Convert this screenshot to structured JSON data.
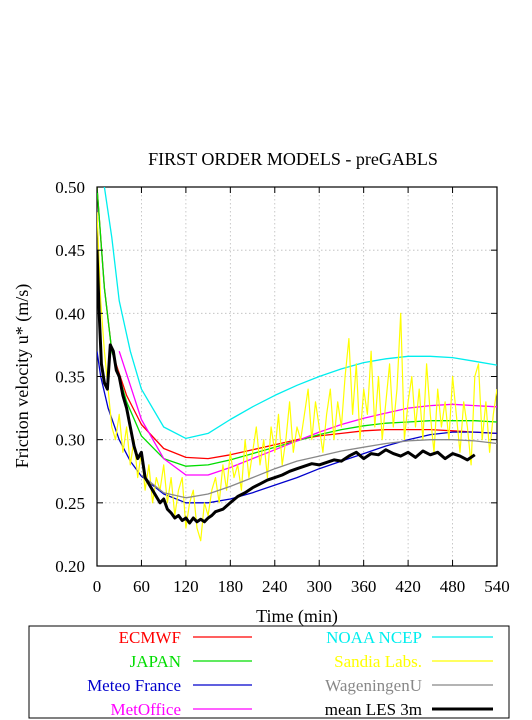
{
  "chart_data": {
    "type": "line",
    "title": "FIRST ORDER MODELS  - preGABLS",
    "xlabel": "Time (min)",
    "ylabel": "Friction velocity u* (m/s)",
    "xlim": [
      0,
      540
    ],
    "ylim": [
      0.2,
      0.5
    ],
    "xticks": [
      0,
      60,
      120,
      180,
      240,
      300,
      360,
      420,
      480,
      540
    ],
    "xtick_labels": [
      "0",
      "60",
      "120",
      "180",
      "240",
      "300",
      "360",
      "420",
      "480",
      "540"
    ],
    "yticks": [
      0.2,
      0.25,
      0.3,
      0.35,
      0.4,
      0.45,
      0.5
    ],
    "ytick_labels": [
      "0.20",
      "0.25",
      "0.30",
      "0.35",
      "0.40",
      "0.45",
      "0.50"
    ],
    "grid": true,
    "legend_position": "bottom",
    "series": [
      {
        "name": "ECMWF",
        "color": "#ff0000",
        "width": 1.3,
        "x": [
          0,
          10,
          20,
          40,
          60,
          90,
          120,
          150,
          180,
          210,
          240,
          270,
          300,
          330,
          360,
          390,
          420,
          450,
          480,
          510,
          540
        ],
        "y": [
          0.5,
          0.42,
          0.37,
          0.335,
          0.312,
          0.293,
          0.286,
          0.285,
          0.288,
          0.292,
          0.296,
          0.3,
          0.303,
          0.305,
          0.307,
          0.308,
          0.308,
          0.308,
          0.307,
          0.306,
          0.305
        ]
      },
      {
        "name": "JAPAN",
        "color": "#00dd00",
        "width": 1.3,
        "x": [
          0,
          10,
          20,
          40,
          60,
          90,
          120,
          150,
          180,
          210,
          240,
          270,
          300,
          330,
          360,
          390,
          420,
          450,
          480,
          510,
          540
        ],
        "y": [
          0.5,
          0.42,
          0.37,
          0.33,
          0.303,
          0.285,
          0.279,
          0.28,
          0.284,
          0.289,
          0.294,
          0.299,
          0.304,
          0.308,
          0.311,
          0.313,
          0.314,
          0.315,
          0.315,
          0.315,
          0.314
        ]
      },
      {
        "name": "Meteo France",
        "color": "#0000cc",
        "width": 1.3,
        "x": [
          0,
          5,
          15,
          30,
          45,
          60,
          90,
          120,
          150,
          180,
          210,
          240,
          270,
          300,
          330,
          360,
          390,
          420,
          450,
          480,
          510,
          540
        ],
        "y": [
          0.37,
          0.35,
          0.325,
          0.3,
          0.283,
          0.271,
          0.257,
          0.25,
          0.25,
          0.253,
          0.258,
          0.264,
          0.27,
          0.277,
          0.283,
          0.289,
          0.295,
          0.3,
          0.304,
          0.306,
          0.306,
          0.305
        ]
      },
      {
        "name": "MetOffice",
        "color": "#ff00ff",
        "width": 1.3,
        "x": [
          30,
          45,
          60,
          90,
          120,
          150,
          180,
          210,
          240,
          270,
          300,
          330,
          360,
          390,
          420,
          450,
          480,
          510,
          540
        ],
        "y": [
          0.37,
          0.343,
          0.316,
          0.285,
          0.272,
          0.272,
          0.278,
          0.285,
          0.292,
          0.299,
          0.306,
          0.312,
          0.317,
          0.321,
          0.325,
          0.327,
          0.328,
          0.327,
          0.326
        ]
      },
      {
        "name": "NOAA NCEP",
        "color": "#00eeee",
        "width": 1.3,
        "x": [
          0,
          5,
          10,
          20,
          30,
          45,
          60,
          90,
          120,
          150,
          180,
          210,
          240,
          270,
          300,
          330,
          360,
          390,
          420,
          450,
          480,
          510,
          540
        ],
        "y": [
          0.56,
          0.52,
          0.5,
          0.46,
          0.41,
          0.37,
          0.34,
          0.31,
          0.301,
          0.305,
          0.316,
          0.326,
          0.335,
          0.343,
          0.35,
          0.356,
          0.361,
          0.364,
          0.366,
          0.366,
          0.365,
          0.362,
          0.359
        ]
      },
      {
        "name": "Sandia Labs.",
        "color": "#ffff00",
        "width": 1.2,
        "x": [
          0,
          5,
          10,
          15,
          20,
          25,
          30,
          35,
          40,
          45,
          50,
          55,
          60,
          65,
          70,
          75,
          80,
          85,
          90,
          95,
          100,
          105,
          110,
          115,
          120,
          125,
          130,
          135,
          140,
          145,
          150,
          155,
          160,
          165,
          170,
          175,
          180,
          185,
          190,
          195,
          200,
          205,
          210,
          215,
          220,
          225,
          230,
          235,
          240,
          245,
          250,
          255,
          260,
          265,
          270,
          275,
          280,
          285,
          290,
          295,
          300,
          305,
          310,
          315,
          320,
          325,
          330,
          335,
          340,
          345,
          350,
          355,
          360,
          365,
          370,
          375,
          380,
          385,
          390,
          395,
          400,
          405,
          410,
          415,
          420,
          425,
          430,
          435,
          440,
          445,
          450,
          455,
          460,
          465,
          470,
          475,
          480,
          485,
          490,
          495,
          500,
          505,
          510,
          515,
          520,
          525,
          530,
          535,
          540
        ],
        "y": [
          0.48,
          0.41,
          0.37,
          0.34,
          0.31,
          0.3,
          0.32,
          0.29,
          0.31,
          0.28,
          0.3,
          0.27,
          0.29,
          0.26,
          0.28,
          0.25,
          0.27,
          0.26,
          0.28,
          0.25,
          0.27,
          0.24,
          0.26,
          0.27,
          0.23,
          0.25,
          0.26,
          0.23,
          0.22,
          0.25,
          0.24,
          0.26,
          0.27,
          0.25,
          0.28,
          0.26,
          0.29,
          0.27,
          0.28,
          0.26,
          0.3,
          0.27,
          0.29,
          0.31,
          0.28,
          0.3,
          0.27,
          0.31,
          0.29,
          0.32,
          0.28,
          0.3,
          0.33,
          0.29,
          0.31,
          0.3,
          0.32,
          0.34,
          0.3,
          0.33,
          0.31,
          0.29,
          0.32,
          0.34,
          0.3,
          0.33,
          0.31,
          0.35,
          0.38,
          0.32,
          0.36,
          0.3,
          0.34,
          0.32,
          0.37,
          0.31,
          0.35,
          0.3,
          0.33,
          0.36,
          0.31,
          0.34,
          0.4,
          0.3,
          0.33,
          0.35,
          0.31,
          0.34,
          0.3,
          0.36,
          0.32,
          0.29,
          0.34,
          0.31,
          0.33,
          0.3,
          0.35,
          0.32,
          0.29,
          0.33,
          0.31,
          0.28,
          0.35,
          0.36,
          0.3,
          0.33,
          0.29,
          0.32,
          0.34
        ]
      },
      {
        "name": "WageningenU",
        "color": "#888888",
        "width": 1.3,
        "x": [
          60,
          90,
          120,
          150,
          180,
          210,
          240,
          270,
          300,
          330,
          360,
          390,
          420,
          450,
          480,
          510,
          540
        ],
        "y": [
          0.272,
          0.258,
          0.254,
          0.257,
          0.263,
          0.27,
          0.277,
          0.283,
          0.287,
          0.291,
          0.294,
          0.297,
          0.299,
          0.3,
          0.3,
          0.299,
          0.297
        ]
      },
      {
        "name": "mean LES 3m",
        "color": "#000000",
        "width": 3,
        "x": [
          0,
          3,
          6,
          10,
          14,
          18,
          22,
          26,
          30,
          35,
          40,
          45,
          50,
          55,
          60,
          65,
          70,
          75,
          80,
          85,
          90,
          95,
          100,
          105,
          110,
          115,
          120,
          125,
          130,
          135,
          140,
          145,
          150,
          155,
          160,
          170,
          180,
          190,
          200,
          210,
          220,
          230,
          240,
          250,
          260,
          270,
          280,
          290,
          300,
          310,
          320,
          330,
          340,
          350,
          360,
          370,
          380,
          390,
          400,
          410,
          420,
          430,
          440,
          450,
          460,
          470,
          480,
          490,
          500,
          510
        ],
        "y": [
          0.45,
          0.4,
          0.36,
          0.345,
          0.34,
          0.375,
          0.37,
          0.355,
          0.35,
          0.335,
          0.325,
          0.31,
          0.295,
          0.285,
          0.29,
          0.27,
          0.265,
          0.26,
          0.255,
          0.25,
          0.253,
          0.245,
          0.242,
          0.238,
          0.24,
          0.236,
          0.238,
          0.234,
          0.238,
          0.235,
          0.237,
          0.235,
          0.238,
          0.24,
          0.243,
          0.245,
          0.25,
          0.255,
          0.258,
          0.262,
          0.265,
          0.268,
          0.27,
          0.272,
          0.275,
          0.277,
          0.279,
          0.281,
          0.28,
          0.282,
          0.284,
          0.283,
          0.287,
          0.29,
          0.285,
          0.289,
          0.288,
          0.292,
          0.289,
          0.287,
          0.29,
          0.286,
          0.291,
          0.288,
          0.29,
          0.285,
          0.289,
          0.287,
          0.284,
          0.288
        ]
      }
    ]
  }
}
